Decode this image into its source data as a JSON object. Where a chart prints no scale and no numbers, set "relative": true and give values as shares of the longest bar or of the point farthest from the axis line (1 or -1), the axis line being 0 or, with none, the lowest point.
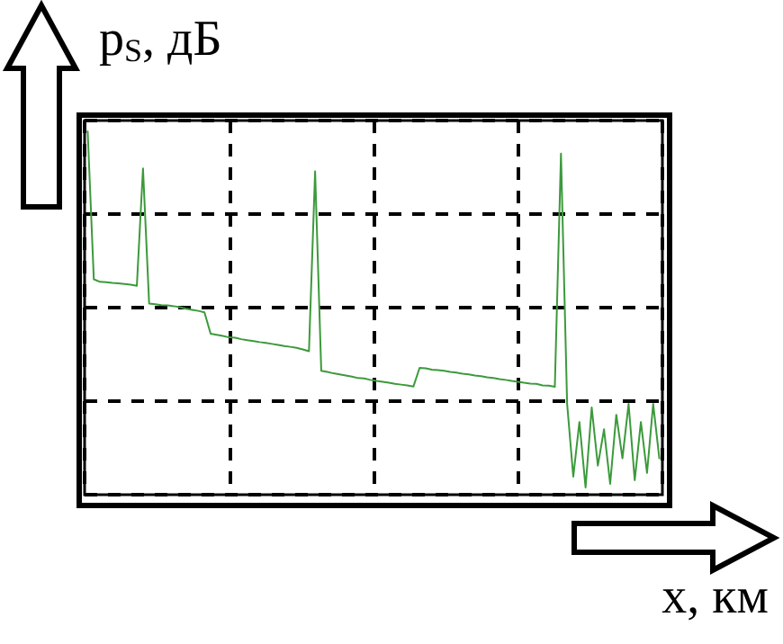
{
  "chart_data": {
    "type": "line",
    "relative": true,
    "xlabel": "x, км",
    "ylabel": "p$_{S}$, дБ",
    "categories": [
      null,
      null,
      null,
      null,
      null,
      null,
      null,
      null,
      null,
      null,
      null,
      null,
      null,
      null,
      null,
      null,
      null,
      null,
      null,
      null,
      null,
      null,
      null,
      null,
      null,
      null,
      null,
      null,
      null,
      null,
      null,
      null,
      null,
      null,
      null,
      null,
      null,
      null,
      null,
      null,
      null,
      null,
      null,
      null,
      null,
      null,
      null,
      null,
      null,
      null,
      null,
      null,
      null,
      null,
      null,
      null,
      null,
      null,
      null,
      null,
      null,
      null,
      null,
      null,
      null,
      null,
      null,
      null,
      null,
      null,
      null,
      null,
      null,
      null,
      null,
      null,
      null,
      null,
      null,
      null,
      null,
      null,
      null,
      null,
      null,
      null,
      null,
      null,
      null,
      null,
      null,
      null,
      null,
      null
    ],
    "values": [
      1.0,
      0.593,
      0.586,
      0.585,
      0.583,
      0.582,
      0.58,
      0.578,
      0.575,
      0.898,
      0.526,
      0.524,
      0.522,
      0.521,
      0.519,
      0.516,
      0.512,
      0.509,
      0.506,
      0.502,
      0.443,
      0.44,
      0.437,
      0.433,
      0.432,
      0.428,
      0.425,
      0.423,
      0.42,
      0.418,
      0.415,
      0.412,
      0.409,
      0.407,
      0.404,
      0.4,
      0.395,
      0.89,
      0.341,
      0.338,
      0.334,
      0.331,
      0.328,
      0.325,
      0.321,
      0.32,
      0.316,
      0.313,
      0.311,
      0.308,
      0.305,
      0.303,
      0.301,
      0.298,
      0.349,
      0.348,
      0.344,
      0.343,
      0.341,
      0.338,
      0.336,
      0.333,
      0.331,
      0.328,
      0.326,
      0.323,
      0.321,
      0.318,
      0.316,
      0.313,
      0.311,
      0.308,
      0.306,
      0.305,
      0.301,
      0.3,
      0.297,
      0.939,
      0.25,
      0.05,
      0.2,
      0.02,
      0.24,
      0.08,
      0.18,
      0.03,
      0.22,
      0.1,
      0.25,
      0.04,
      0.2,
      0.06,
      0.25,
      0.1
    ],
    "color": "#3c9a3c",
    "line_style": "solid",
    "grid": true
  }
}
